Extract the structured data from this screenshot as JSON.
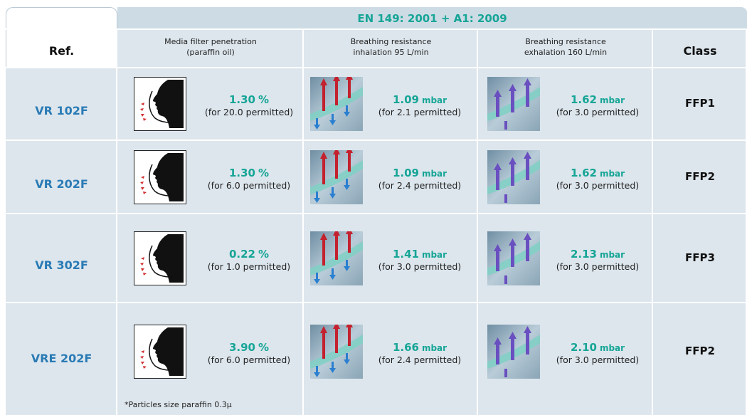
{
  "header": {
    "standard": "EN 149: 2001 + A1: 2009",
    "ref": "Ref.",
    "penetration": [
      "Media filter penetration",
      "(paraffin oil)"
    ],
    "inhalation": [
      "Breathing resistance",
      "inhalation 95 L/min"
    ],
    "exhalation": [
      "Breathing resistance",
      "exhalation 160 L/min"
    ],
    "class": "Class"
  },
  "rows": [
    {
      "ref": "VR 102F",
      "penetration": {
        "value": "1.30",
        "unit": "%",
        "note": "(for 20.0 permitted)"
      },
      "inhalation": {
        "value": "1.09",
        "unit": "mbar",
        "note": "(for 2.1 permitted)"
      },
      "exhalation": {
        "value": "1.62",
        "unit": "mbar",
        "note": "(for 3.0 permitted)"
      },
      "class": "FFP1"
    },
    {
      "ref": "VR 202F",
      "penetration": {
        "value": "1.30",
        "unit": "%",
        "note": "(for 6.0 permitted)"
      },
      "inhalation": {
        "value": "1.09",
        "unit": "mbar",
        "note": "(for 2.4 permitted)"
      },
      "exhalation": {
        "value": "1.62",
        "unit": "mbar",
        "note": "(for 3.0 permitted)"
      },
      "class": "FFP2"
    },
    {
      "ref": "VR 302F",
      "penetration": {
        "value": "0.22",
        "unit": "%",
        "note": "(for 1.0 permitted)"
      },
      "inhalation": {
        "value": "1.41",
        "unit": "mbar",
        "note": "(for 3.0 permitted)"
      },
      "exhalation": {
        "value": "2.13",
        "unit": "mbar",
        "note": "(for 3.0 permitted)"
      },
      "class": "FFP3"
    },
    {
      "ref": "VRE 202F",
      "penetration": {
        "value": "3.90",
        "unit": "%",
        "note": "(for 6.0 permitted)"
      },
      "inhalation": {
        "value": "1.66",
        "unit": "mbar",
        "note": "(for 2.4 permitted)"
      },
      "exhalation": {
        "value": "2.10",
        "unit": "mbar",
        "note": "(for 3.0 permitted)"
      },
      "class": "FFP2"
    }
  ],
  "footnote": "*Particles size paraffin 0.3µ"
}
